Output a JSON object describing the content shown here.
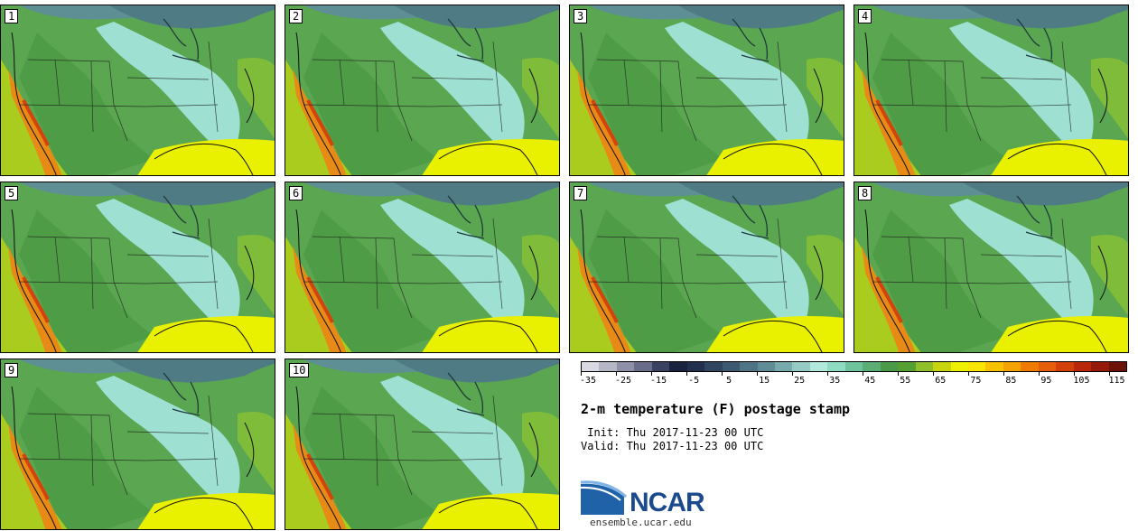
{
  "members": [
    "1",
    "2",
    "3",
    "4",
    "5",
    "6",
    "7",
    "8",
    "9",
    "10"
  ],
  "colorbar": {
    "ticks": [
      "-35",
      "-25",
      "-15",
      "-5",
      "5",
      "15",
      "25",
      "35",
      "45",
      "55",
      "65",
      "75",
      "85",
      "95",
      "105",
      "115"
    ],
    "colors": [
      "#d9d9e3",
      "#b5b6c6",
      "#8e90a8",
      "#6a6d8a",
      "#3a4263",
      "#1a233e",
      "#222f4f",
      "#2f4560",
      "#3d5a72",
      "#4e7485",
      "#5f8c96",
      "#77aaac",
      "#95cbc4",
      "#b1e9dd",
      "#8fdbc2",
      "#6fc39c",
      "#5aad74",
      "#4b9a4a",
      "#56a033",
      "#8fbf2a",
      "#c8d50e",
      "#eef000",
      "#fae500",
      "#f8c200",
      "#f4a200",
      "#ee7b00",
      "#e55e0a",
      "#d3400a",
      "#b82709",
      "#951a09",
      "#6d1206"
    ]
  },
  "title": "2-m temperature (F) postage stamp",
  "init": " Init: Thu 2017-11-23 00 UTC",
  "valid": "Valid: Thu 2017-11-23 00 UTC",
  "logo_text": "NCAR",
  "website": "ensemble.ucar.edu"
}
